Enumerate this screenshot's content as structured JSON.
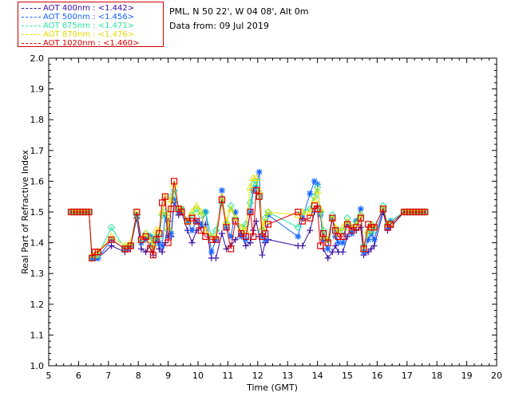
{
  "info": {
    "location": "PML, N 50 22', W 04 08', Alt 0m",
    "date": "Data from: 09 Jul 2019"
  },
  "colors": {
    "s400": "#3a0fa0",
    "s500": "#1565ff",
    "s675": "#22e6a0",
    "s870": "#f0e000",
    "s1020": "#e00000"
  },
  "chart_data": {
    "type": "scatter",
    "xlabel": "Time (GMT)",
    "ylabel": "Real Part of Refractive Index",
    "xlim": [
      5,
      20
    ],
    "ylim": [
      1.0,
      2.0
    ],
    "xticks": [
      "5",
      "6",
      "7",
      "8",
      "9",
      "10",
      "11",
      "12",
      "13",
      "14",
      "15",
      "16",
      "17",
      "18",
      "19",
      "20"
    ],
    "yticks": [
      "1.0",
      "1.1",
      "1.2",
      "1.3",
      "1.4",
      "1.5",
      "1.6",
      "1.7",
      "1.8",
      "1.9",
      "2.0"
    ],
    "grid": false,
    "legend": "top-left",
    "x": [
      5.75,
      5.85,
      5.95,
      6.05,
      6.15,
      6.25,
      6.35,
      6.45,
      6.55,
      6.65,
      7.1,
      7.55,
      7.65,
      7.75,
      7.95,
      8.1,
      8.25,
      8.4,
      8.5,
      8.6,
      8.7,
      8.8,
      8.9,
      9.0,
      9.1,
      9.2,
      9.35,
      9.45,
      9.65,
      9.8,
      9.95,
      10.1,
      10.25,
      10.45,
      10.6,
      10.8,
      10.95,
      11.1,
      11.25,
      11.45,
      11.6,
      11.75,
      11.85,
      11.95,
      12.05,
      12.15,
      12.25,
      12.35,
      13.35,
      13.5,
      13.75,
      13.9,
      14.0,
      14.1,
      14.2,
      14.35,
      14.5,
      14.6,
      14.7,
      14.85,
      15.0,
      15.15,
      15.3,
      15.45,
      15.55,
      15.7,
      15.8,
      15.9,
      16.2,
      16.35,
      16.45,
      16.9,
      17.0,
      17.1,
      17.2,
      17.3,
      17.4,
      17.5,
      17.6
    ],
    "series": [
      {
        "name": "AOT  400nm : <1.442>",
        "symbol": "plus",
        "values": [
          1.5,
          1.5,
          1.5,
          1.5,
          1.5,
          1.5,
          1.5,
          1.35,
          1.35,
          1.35,
          1.39,
          1.37,
          1.38,
          1.39,
          1.48,
          1.38,
          1.37,
          1.39,
          1.36,
          1.42,
          1.38,
          1.37,
          1.4,
          1.47,
          1.42,
          1.53,
          1.49,
          1.5,
          1.44,
          1.4,
          1.44,
          1.45,
          1.46,
          1.35,
          1.35,
          1.43,
          1.38,
          1.39,
          1.41,
          1.43,
          1.39,
          1.4,
          1.44,
          1.47,
          1.42,
          1.36,
          1.4,
          1.41,
          1.39,
          1.39,
          1.44,
          1.5,
          1.52,
          1.5,
          1.38,
          1.35,
          1.37,
          1.39,
          1.37,
          1.37,
          1.42,
          1.45,
          1.44,
          1.45,
          1.36,
          1.37,
          1.38,
          1.39,
          1.5,
          1.44,
          1.45,
          1.5,
          1.5,
          1.5,
          1.5,
          1.5,
          1.5,
          1.5,
          1.5
        ]
      },
      {
        "name": "AOT  500nm : <1.456>",
        "symbol": "star",
        "values": [
          1.5,
          1.5,
          1.5,
          1.5,
          1.5,
          1.5,
          1.5,
          1.35,
          1.35,
          1.35,
          1.41,
          1.38,
          1.38,
          1.39,
          1.49,
          1.4,
          1.41,
          1.42,
          1.4,
          1.41,
          1.4,
          1.39,
          1.49,
          1.42,
          1.43,
          1.54,
          1.5,
          1.51,
          1.47,
          1.44,
          1.47,
          1.46,
          1.5,
          1.37,
          1.41,
          1.57,
          1.45,
          1.42,
          1.5,
          1.42,
          1.41,
          1.5,
          1.57,
          1.58,
          1.63,
          1.42,
          1.41,
          1.49,
          1.42,
          1.48,
          1.56,
          1.6,
          1.59,
          1.49,
          1.41,
          1.38,
          1.48,
          1.42,
          1.4,
          1.4,
          1.46,
          1.43,
          1.47,
          1.51,
          1.37,
          1.41,
          1.43,
          1.41,
          1.51,
          1.45,
          1.47,
          1.5,
          1.5,
          1.5,
          1.5,
          1.5,
          1.5,
          1.5,
          1.5
        ]
      },
      {
        "name": "AOT  675nm : <1.471>",
        "symbol": "diamond",
        "values": [
          1.5,
          1.5,
          1.5,
          1.5,
          1.5,
          1.5,
          1.5,
          1.35,
          1.36,
          1.36,
          1.45,
          1.38,
          1.39,
          1.39,
          1.49,
          1.41,
          1.43,
          1.42,
          1.39,
          1.42,
          1.42,
          1.49,
          1.5,
          1.44,
          1.55,
          1.57,
          1.51,
          1.51,
          1.47,
          1.49,
          1.51,
          1.49,
          1.5,
          1.42,
          1.44,
          1.53,
          1.46,
          1.52,
          1.48,
          1.45,
          1.46,
          1.53,
          1.59,
          1.6,
          1.55,
          1.44,
          1.48,
          1.5,
          1.45,
          1.5,
          1.51,
          1.55,
          1.58,
          1.5,
          1.44,
          1.41,
          1.49,
          1.44,
          1.44,
          1.44,
          1.48,
          1.45,
          1.47,
          1.49,
          1.39,
          1.43,
          1.46,
          1.44,
          1.52,
          1.46,
          1.47,
          1.5,
          1.5,
          1.5,
          1.5,
          1.5,
          1.5,
          1.5,
          1.5
        ]
      },
      {
        "name": "AOT  870nm : <1.476>",
        "symbol": "triangle",
        "values": [
          1.5,
          1.5,
          1.5,
          1.5,
          1.5,
          1.5,
          1.5,
          1.36,
          1.36,
          1.37,
          1.42,
          1.39,
          1.39,
          1.4,
          1.5,
          1.41,
          1.43,
          1.41,
          1.39,
          1.44,
          1.44,
          1.5,
          1.55,
          1.45,
          1.54,
          1.59,
          1.51,
          1.51,
          1.47,
          1.5,
          1.52,
          1.5,
          1.44,
          1.42,
          1.42,
          1.55,
          1.47,
          1.51,
          1.48,
          1.45,
          1.44,
          1.58,
          1.61,
          1.61,
          1.57,
          1.45,
          1.47,
          1.5,
          1.49,
          1.5,
          1.5,
          1.54,
          1.57,
          1.51,
          1.42,
          1.41,
          1.48,
          1.45,
          1.43,
          1.45,
          1.47,
          1.45,
          1.46,
          1.49,
          1.38,
          1.44,
          1.46,
          1.45,
          1.51,
          1.46,
          1.46,
          1.5,
          1.5,
          1.5,
          1.5,
          1.5,
          1.5,
          1.5,
          1.5
        ]
      },
      {
        "name": "AOT 1020nm : <1.460>",
        "symbol": "square",
        "values": [
          1.5,
          1.5,
          1.5,
          1.5,
          1.5,
          1.5,
          1.5,
          1.35,
          1.37,
          1.37,
          1.41,
          1.38,
          1.38,
          1.39,
          1.5,
          1.41,
          1.42,
          1.38,
          1.36,
          1.41,
          1.43,
          1.53,
          1.55,
          1.4,
          1.51,
          1.6,
          1.51,
          1.5,
          1.47,
          1.48,
          1.47,
          1.44,
          1.42,
          1.41,
          1.41,
          1.54,
          1.45,
          1.38,
          1.47,
          1.43,
          1.42,
          1.5,
          1.42,
          1.57,
          1.55,
          1.42,
          1.43,
          1.46,
          1.5,
          1.47,
          1.48,
          1.52,
          1.51,
          1.39,
          1.43,
          1.4,
          1.48,
          1.44,
          1.42,
          1.42,
          1.46,
          1.44,
          1.45,
          1.48,
          1.38,
          1.46,
          1.45,
          1.45,
          1.51,
          1.45,
          1.46,
          1.5,
          1.5,
          1.5,
          1.5,
          1.5,
          1.5,
          1.5,
          1.5
        ]
      }
    ]
  }
}
